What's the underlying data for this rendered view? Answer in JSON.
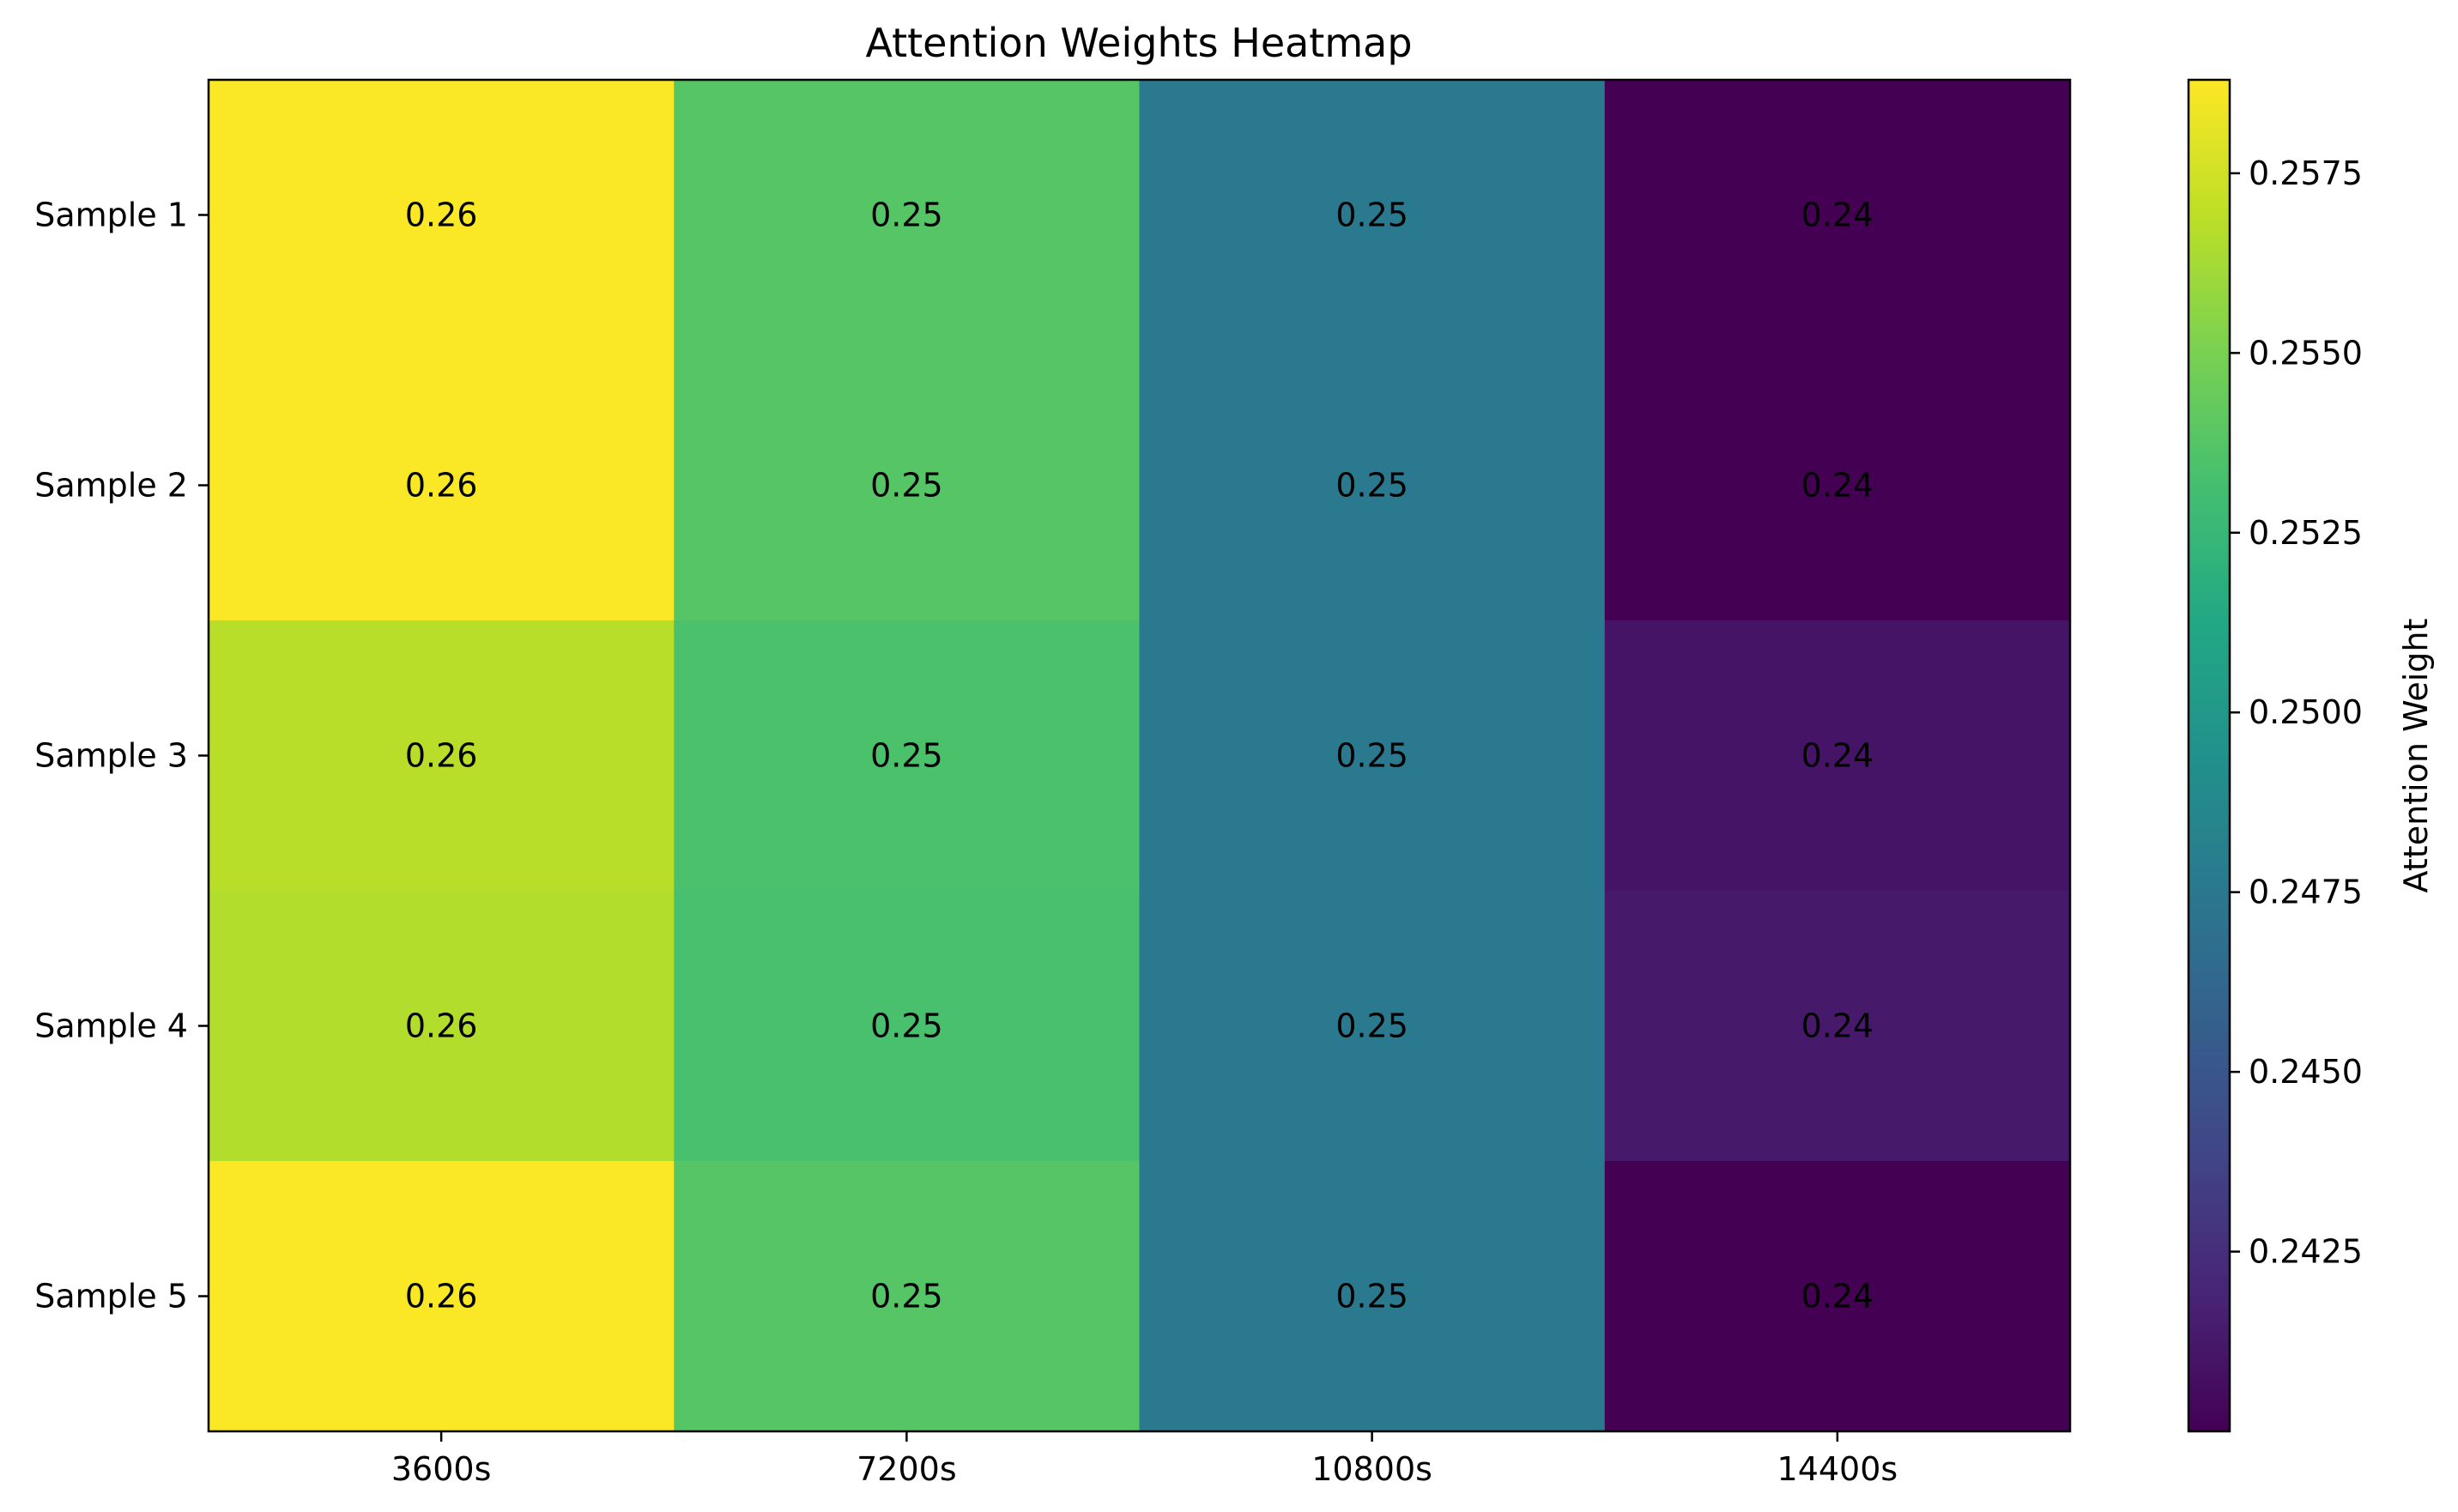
{
  "chart_data": {
    "type": "heatmap",
    "title": "Attention Weights Heatmap",
    "columns": [
      "3600s",
      "7200s",
      "10800s",
      "14400s"
    ],
    "rows": [
      "Sample 1",
      "Sample 2",
      "Sample 3",
      "Sample 4",
      "Sample 5"
    ],
    "values": [
      [
        0.2587,
        0.2538,
        0.2476,
        0.24
      ],
      [
        0.2587,
        0.2538,
        0.2476,
        0.24
      ],
      [
        0.2568,
        0.2534,
        0.2476,
        0.241
      ],
      [
        0.2566,
        0.2533,
        0.2476,
        0.2413
      ],
      [
        0.2587,
        0.2538,
        0.2476,
        0.24
      ]
    ],
    "cell_labels": [
      [
        "0.26",
        "0.25",
        "0.25",
        "0.24"
      ],
      [
        "0.26",
        "0.25",
        "0.25",
        "0.24"
      ],
      [
        "0.26",
        "0.25",
        "0.25",
        "0.24"
      ],
      [
        "0.26",
        "0.25",
        "0.25",
        "0.24"
      ],
      [
        "0.26",
        "0.25",
        "0.25",
        "0.24"
      ]
    ],
    "colormap": "viridis",
    "colorbar": {
      "label": "Attention Weight",
      "range": [
        0.24,
        0.2588
      ],
      "ticks": [
        0.2425,
        0.245,
        0.2475,
        0.25,
        0.2525,
        0.255,
        0.2575
      ],
      "tick_labels": [
        "0.2425",
        "0.2450",
        "0.2475",
        "0.2500",
        "0.2525",
        "0.2550",
        "0.2575"
      ]
    },
    "grid": false
  }
}
